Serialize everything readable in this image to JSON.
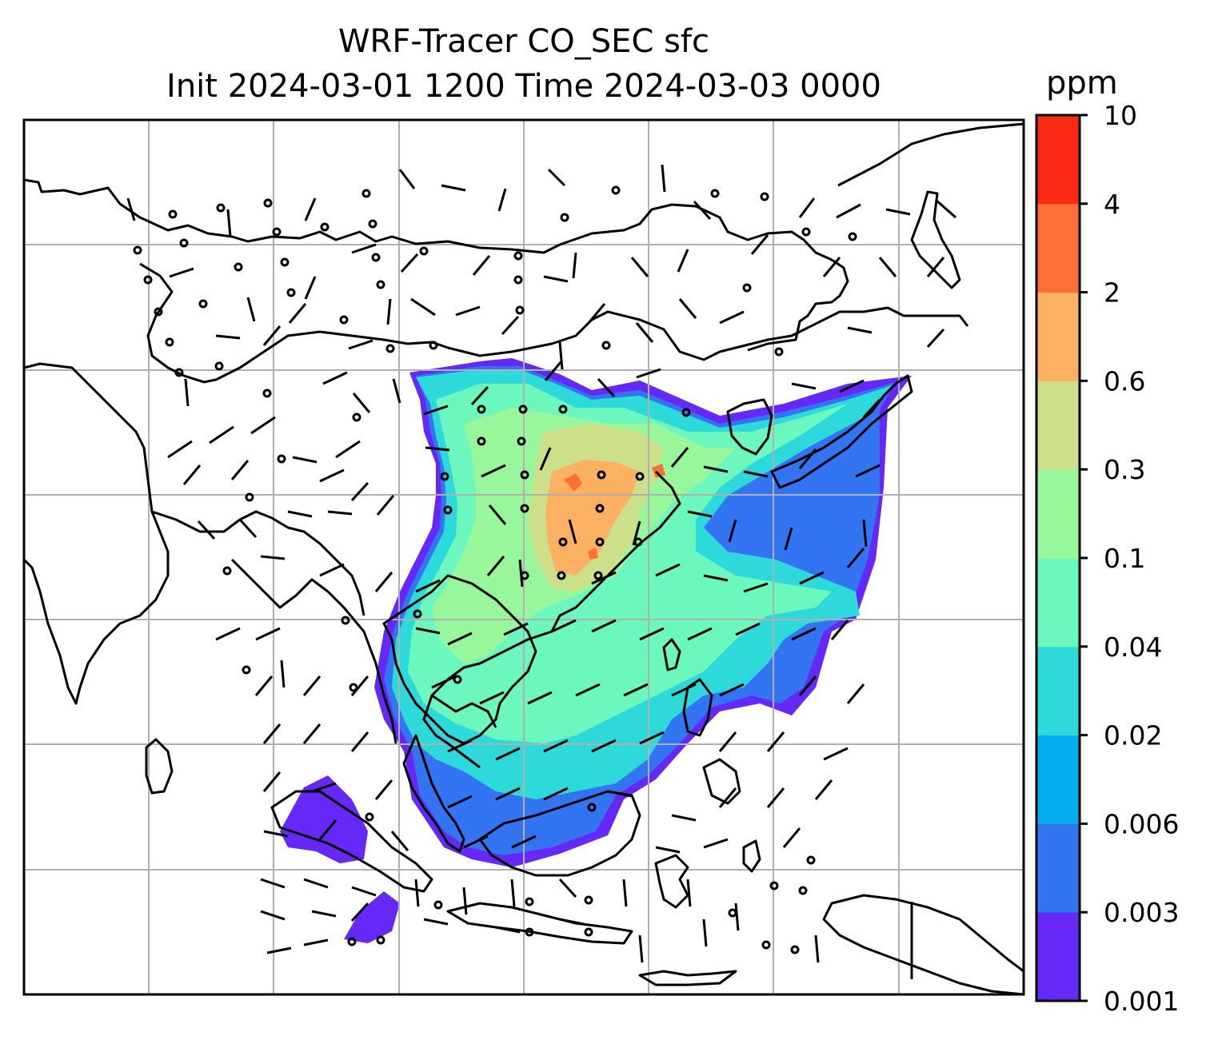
{
  "title": {
    "line1": "WRF-Tracer CO_SEC sfc",
    "line2": "Init 2024-03-01 1200 Time 2024-03-03 0000"
  },
  "colorbar": {
    "unit": "ppm",
    "levels": [
      "0.001",
      "0.003",
      "0.006",
      "0.02",
      "0.04",
      "0.1",
      "0.3",
      "0.6",
      "2",
      "4",
      "10"
    ],
    "colors": [
      "#6528f7",
      "#3374f2",
      "#02aeee",
      "#2dd9d9",
      "#6cf7bf",
      "#98f79b",
      "#cce08a",
      "#fcb062",
      "#fe7036",
      "#fb2a14"
    ]
  },
  "map": {
    "gridlines": true,
    "field": "CO_SEC surface concentration",
    "overlay": "wind barbs",
    "coastline_color": "#000000"
  }
}
